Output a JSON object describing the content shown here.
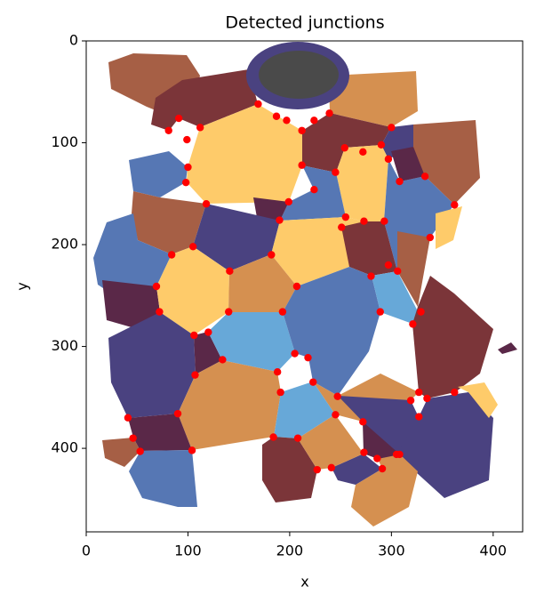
{
  "chart_data": {
    "type": "scatter",
    "title": "Detected junctions",
    "x_label": "x",
    "y_label": "y",
    "xlim": [
      0,
      429
    ],
    "ylim": [
      482,
      0
    ],
    "xticks": [
      0,
      100,
      200,
      300,
      400
    ],
    "yticks": [
      0,
      100,
      200,
      300,
      400
    ],
    "color": "#ff0000",
    "x": [
      169,
      187,
      197,
      212,
      224,
      239,
      300,
      81,
      91,
      112,
      99,
      100,
      98,
      118,
      254,
      272,
      290,
      297,
      308,
      333,
      212,
      245,
      199,
      224,
      190,
      255,
      251,
      273,
      293,
      362,
      338,
      84,
      105,
      141,
      182,
      207,
      306,
      280,
      297,
      69,
      72,
      140,
      193,
      289,
      329,
      321,
      106,
      120,
      134,
      107,
      205,
      218,
      188,
      191,
      223,
      247,
      245,
      272,
      362,
      319,
      327,
      335,
      327,
      41,
      90,
      46,
      53,
      104,
      184,
      208,
      227,
      241,
      273,
      286,
      291,
      305,
      308
    ],
    "values": [
      62,
      74,
      78,
      88,
      78,
      71,
      85,
      88,
      76,
      85,
      97,
      124,
      139,
      160,
      105,
      109,
      102,
      116,
      138,
      133,
      122,
      129,
      158,
      146,
      176,
      173,
      183,
      177,
      177,
      161,
      193,
      210,
      202,
      226,
      210,
      241,
      226,
      231,
      220,
      241,
      266,
      266,
      266,
      266,
      266,
      278,
      289,
      286,
      313,
      328,
      307,
      311,
      325,
      345,
      335,
      349,
      367,
      374,
      345,
      353,
      345,
      351,
      369,
      370,
      366,
      390,
      403,
      402,
      389,
      390,
      421,
      419,
      404,
      410,
      420,
      406,
      406
    ]
  }
}
